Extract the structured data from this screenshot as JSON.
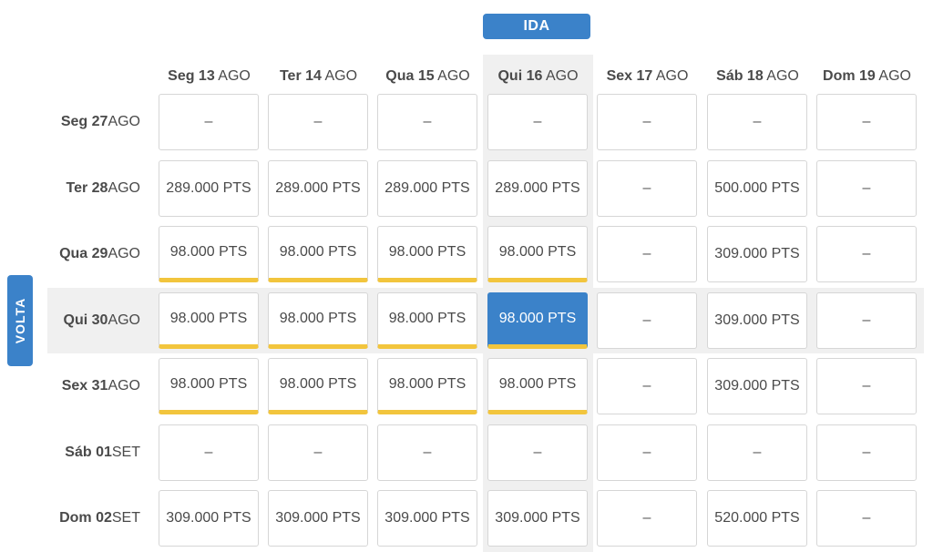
{
  "ida_label": "IDA",
  "volta_label": "VOLTA",
  "columns": [
    {
      "day": "Seg 13",
      "month": "AGO"
    },
    {
      "day": "Ter 14",
      "month": "AGO"
    },
    {
      "day": "Qua 15",
      "month": "AGO"
    },
    {
      "day": "Qui 16",
      "month": "AGO"
    },
    {
      "day": "Sex 17",
      "month": "AGO"
    },
    {
      "day": "Sáb 18",
      "month": "AGO"
    },
    {
      "day": "Dom 19",
      "month": "AGO"
    }
  ],
  "rows": [
    {
      "day": "Seg 27",
      "month": "AGO",
      "cells": [
        "–",
        "–",
        "–",
        "–",
        "–",
        "–",
        "–"
      ]
    },
    {
      "day": "Ter 28",
      "month": "AGO",
      "cells": [
        "289.000 PTS",
        "289.000 PTS",
        "289.000 PTS",
        "289.000 PTS",
        "–",
        "500.000 PTS",
        "–"
      ]
    },
    {
      "day": "Qua 29",
      "month": "AGO",
      "cells": [
        "98.000 PTS",
        "98.000 PTS",
        "98.000 PTS",
        "98.000 PTS",
        "–",
        "309.000 PTS",
        "–"
      ]
    },
    {
      "day": "Qui 30",
      "month": "AGO",
      "cells": [
        "98.000 PTS",
        "98.000 PTS",
        "98.000 PTS",
        "98.000 PTS",
        "–",
        "309.000 PTS",
        "–"
      ]
    },
    {
      "day": "Sex 31",
      "month": "AGO",
      "cells": [
        "98.000 PTS",
        "98.000 PTS",
        "98.000 PTS",
        "98.000 PTS",
        "–",
        "309.000 PTS",
        "–"
      ]
    },
    {
      "day": "Sáb 01",
      "month": "SET",
      "cells": [
        "–",
        "–",
        "–",
        "–",
        "–",
        "–",
        "–"
      ]
    },
    {
      "day": "Dom 02",
      "month": "SET",
      "cells": [
        "309.000 PTS",
        "309.000 PTS",
        "309.000 PTS",
        "309.000 PTS",
        "–",
        "520.000 PTS",
        "–"
      ]
    }
  ],
  "selected": {
    "row": 3,
    "col": 3
  },
  "highlight_row": 3,
  "highlight_col": 3,
  "colors": {
    "accent": "#3b82c9",
    "best_price_bar": "#f2c53d",
    "highlight_bg": "#f0f0f0"
  }
}
